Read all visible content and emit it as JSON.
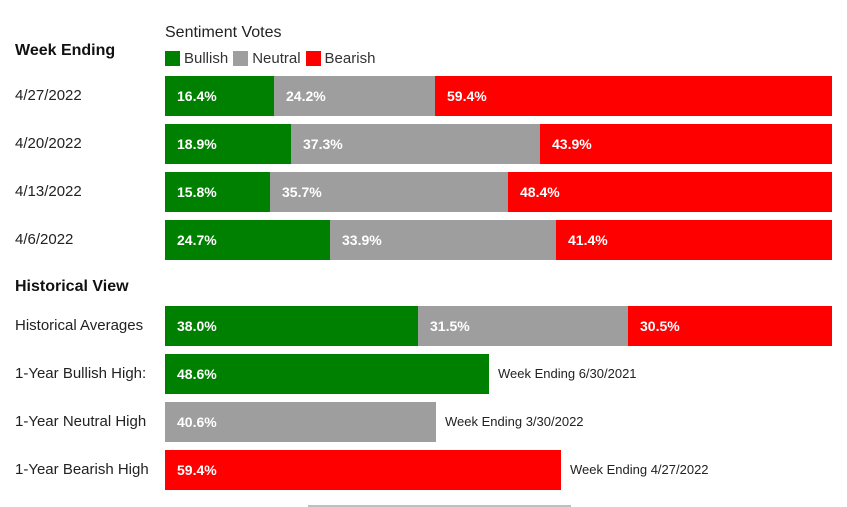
{
  "colors": {
    "bullish": "#008000",
    "neutral": "#9e9e9e",
    "bearish": "#ff0000"
  },
  "legend": {
    "title": "Sentiment Votes",
    "items": [
      {
        "key": "bullish",
        "label": "Bullish"
      },
      {
        "key": "neutral",
        "label": "Neutral"
      },
      {
        "key": "bearish",
        "label": "Bearish"
      }
    ]
  },
  "chart_data": {
    "type": "bar",
    "stacked": true,
    "title": "Sentiment Votes",
    "units": "percent",
    "weekly_section": {
      "heading": "Week Ending",
      "rows": [
        {
          "label": "4/27/2022",
          "bullish": 16.4,
          "neutral": 24.2,
          "bearish": 59.4,
          "bullish_text": "16.4%",
          "neutral_text": "24.2%",
          "bearish_text": "59.4%"
        },
        {
          "label": "4/20/2022",
          "bullish": 18.9,
          "neutral": 37.3,
          "bearish": 43.9,
          "bullish_text": "18.9%",
          "neutral_text": "37.3%",
          "bearish_text": "43.9%"
        },
        {
          "label": "4/13/2022",
          "bullish": 15.8,
          "neutral": 35.7,
          "bearish": 48.4,
          "bullish_text": "15.8%",
          "neutral_text": "35.7%",
          "bearish_text": "48.4%"
        },
        {
          "label": "4/6/2022",
          "bullish": 24.7,
          "neutral": 33.9,
          "bearish": 41.4,
          "bullish_text": "24.7%",
          "neutral_text": "33.9%",
          "bearish_text": "41.4%"
        }
      ]
    },
    "historical_section": {
      "heading": "Historical View",
      "averages": {
        "label": "Historical Averages",
        "bullish": 38.0,
        "neutral": 31.5,
        "bearish": 30.5,
        "bullish_text": "38.0%",
        "neutral_text": "31.5%",
        "bearish_text": "30.5%"
      },
      "highs": [
        {
          "label": "1-Year Bullish High:",
          "sentiment": "bullish",
          "value": 48.6,
          "value_text": "48.6%",
          "note": "Week Ending 6/30/2021"
        },
        {
          "label": "1-Year Neutral High",
          "sentiment": "neutral",
          "value": 40.6,
          "value_text": "40.6%",
          "note": "Week Ending 3/30/2022"
        },
        {
          "label": "1-Year Bearish High",
          "sentiment": "bearish",
          "value": 59.4,
          "value_text": "59.4%",
          "note": "Week Ending 4/27/2022"
        }
      ]
    }
  }
}
